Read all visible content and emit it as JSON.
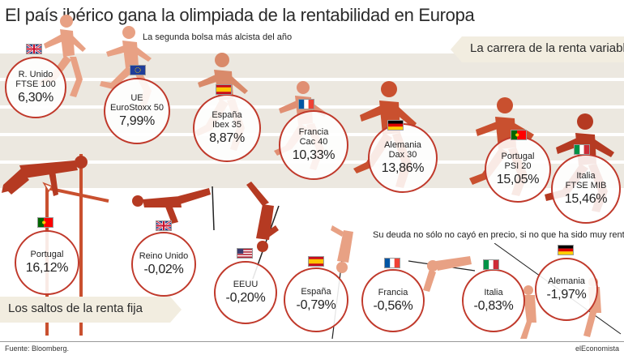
{
  "header": {
    "title": "El país ibérico gana la olimpiada de la rentabilidad en Europa",
    "subtitle": "La segunda bolsa más alcista del año"
  },
  "sections": {
    "equity_banner": "La carrera de la renta variable",
    "bond_banner": "Los saltos de la renta fija",
    "bond_note": "Su deuda no sólo no cayó en precio, si no que ha sido muy rentable"
  },
  "equities": [
    {
      "line1": "R. Unido",
      "line2": "FTSE 100",
      "value": "6,30%",
      "flag": "uk-flag"
    },
    {
      "line1": "UE",
      "line2": "EuroStoxx 50",
      "value": "7,99%",
      "flag": "eu-flag"
    },
    {
      "line1": "España",
      "line2": "Ibex 35",
      "value": "8,87%",
      "flag": "spain-flag"
    },
    {
      "line1": "Francia",
      "line2": "Cac 40",
      "value": "10,33%",
      "flag": "france-flag"
    },
    {
      "line1": "Alemania",
      "line2": "Dax 30",
      "value": "13,86%",
      "flag": "germany-flag"
    },
    {
      "line1": "Portugal",
      "line2": "PSI 20",
      "value": "15,05%",
      "flag": "portugal-flag"
    },
    {
      "line1": "Italia",
      "line2": "FTSE MIB",
      "value": "15,46%",
      "flag": "italy-flag"
    }
  ],
  "bonds": [
    {
      "label": "Portugal",
      "value": "16,12%",
      "flag": "portugal-flag"
    },
    {
      "label": "Reino Unido",
      "value": "-0,02%",
      "flag": "uk-flag"
    },
    {
      "label": "EEUU",
      "value": "-0,20%",
      "flag": "usa-flag"
    },
    {
      "label": "España",
      "value": "-0,79%",
      "flag": "spain-flag"
    },
    {
      "label": "Francia",
      "value": "-0,56%",
      "flag": "france-flag"
    },
    {
      "label": "Italia",
      "value": "-0,83%",
      "flag": "italy-flag"
    },
    {
      "label": "Alemania",
      "value": "-1,97%",
      "flag": "germany-flag"
    }
  ],
  "footer": {
    "source": "Fuente: Bloomberg.",
    "brand": "elEconomista"
  },
  "colors": {
    "accent": "#c0392b",
    "runner_light": "#e8a184",
    "runner_mid": "#d4694a",
    "runner_dark": "#b53a22",
    "track": "#ece8e0",
    "banner": "#f2ede0"
  }
}
